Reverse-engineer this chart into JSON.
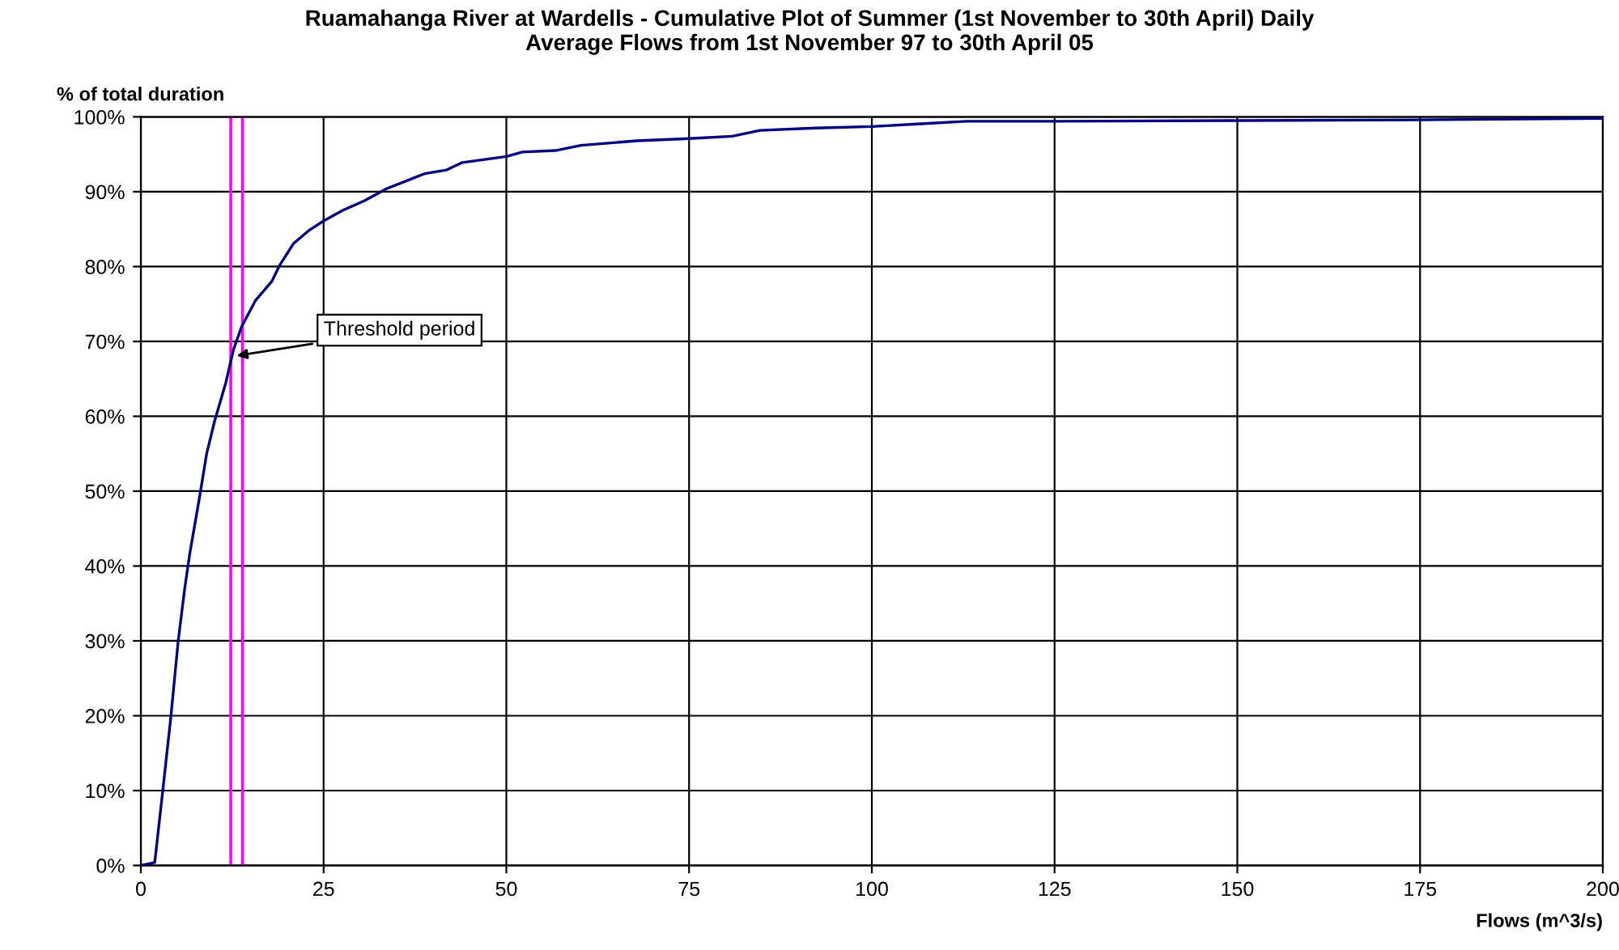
{
  "chart_data": {
    "type": "line",
    "title": "Ruamahanga River at Wardells - Cumulative Plot of Summer (1st November to 30th April) Daily\nAverage Flows from 1st November 97 to 30th April 05",
    "xlabel": "Flows (m^3/s)",
    "ylabel": "% of total duration",
    "series": [
      {
        "color": "#000080",
        "x": [
          0,
          1.9,
          3.0,
          4.1,
          5.1,
          6.0,
          6.7,
          8.1,
          9.0,
          10.1,
          11.6,
          12.7,
          13.8,
          15.7,
          17.9,
          19.0,
          20.9,
          23.1,
          25,
          27.6,
          30.6,
          33.6,
          38.8,
          41.8,
          44.0,
          50,
          52.2,
          56.7,
          60.2,
          67.8,
          75,
          80.9,
          84.7,
          92.2,
          100,
          107.2,
          112.9,
          125,
          150,
          175,
          199.8
        ],
        "values": [
          0,
          0.4,
          10,
          19.8,
          29.9,
          37,
          41.7,
          49.6,
          55,
          59.4,
          64.4,
          69,
          72,
          75.5,
          78,
          80.2,
          83.1,
          84.9,
          86.1,
          87.5,
          88.8,
          90.4,
          92.4,
          92.9,
          93.9,
          94.7,
          95.3,
          95.5,
          96.2,
          96.8,
          97.1,
          97.4,
          98.2,
          98.5,
          98.7,
          99.1,
          99.4,
          99.4,
          99.5,
          99.6,
          99.8
        ]
      }
    ],
    "xlim": [
      0,
      200
    ],
    "xticks": [
      0,
      25,
      50,
      75,
      100,
      125,
      150,
      175,
      200
    ],
    "ylim": [
      0,
      100
    ],
    "yticks": [
      {
        "value": 0,
        "label": "0%"
      },
      {
        "value": 10,
        "label": "10%"
      },
      {
        "value": 20,
        "label": "20%"
      },
      {
        "value": 30,
        "label": "30%"
      },
      {
        "value": 40,
        "label": "40%"
      },
      {
        "value": 50,
        "label": "50%"
      },
      {
        "value": 60,
        "label": "60%"
      },
      {
        "value": 70,
        "label": "70%"
      },
      {
        "value": 80,
        "label": "80%"
      },
      {
        "value": 90,
        "label": "90%"
      },
      {
        "value": 100,
        "label": "100%"
      }
    ],
    "ref_lines": [
      {
        "axis": "x",
        "value": 12.3,
        "color": "#ff00ff"
      },
      {
        "axis": "x",
        "value": 13.9,
        "color": "#ff00ff"
      }
    ],
    "annotations": [
      {
        "text": "Threshold period",
        "x": 12.5,
        "y": 68
      }
    ],
    "grid": true,
    "legend": false,
    "marker": "none",
    "line_style": "solid"
  }
}
